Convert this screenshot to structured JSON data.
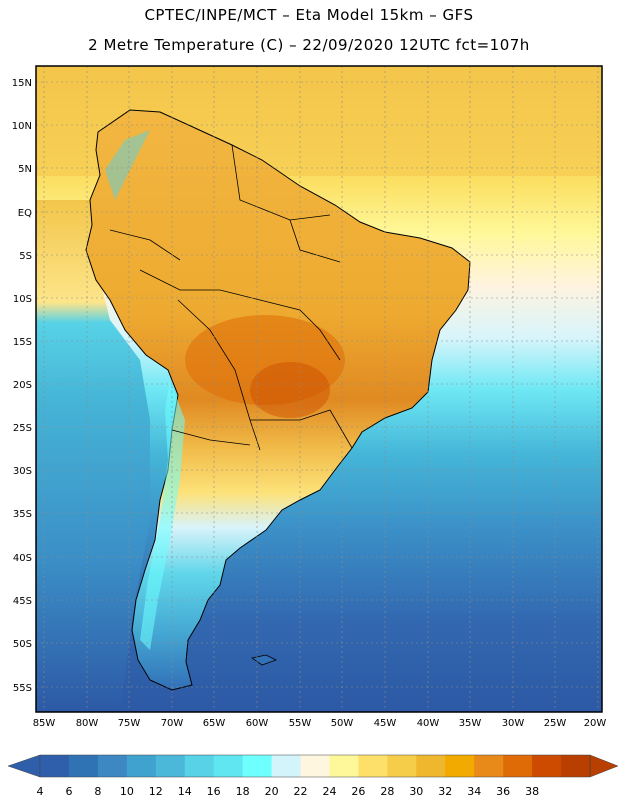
{
  "title_line1": "CPTEC/INPE/MCT –  Eta Model 15km – GFS",
  "title_line2": "2 Metre Temperature (C) – 22/09/2020 12UTC fct=107h",
  "lat_labels": [
    "15N",
    "10N",
    "5N",
    "EQ",
    "5S",
    "10S",
    "15S",
    "20S",
    "25S",
    "30S",
    "35S",
    "40S",
    "45S",
    "50S",
    "55S"
  ],
  "lon_labels": [
    "85W",
    "80W",
    "75W",
    "70W",
    "65W",
    "60W",
    "55W",
    "50W",
    "45W",
    "40W",
    "35W",
    "30W",
    "25W",
    "20W"
  ],
  "colorbar": {
    "labels": [
      "4",
      "6",
      "8",
      "10",
      "12",
      "14",
      "16",
      "18",
      "20",
      "22",
      "24",
      "26",
      "28",
      "30",
      "32",
      "34",
      "36",
      "38"
    ],
    "colors": [
      "#2f5faa",
      "#2f73b5",
      "#3d87c3",
      "#40a3cf",
      "#4cb8d9",
      "#57d2e6",
      "#5fe6f0",
      "#6effff",
      "#d3f4fb",
      "#fff6e0",
      "#fff89a",
      "#fde06a",
      "#f6cd48",
      "#eeb72e",
      "#f2a900",
      "#e78a19",
      "#de6b06",
      "#cd4b00",
      "#b93f00"
    ],
    "left_arrow_color": "#2f5faa",
    "right_arrow_color": "#b93f00"
  }
}
